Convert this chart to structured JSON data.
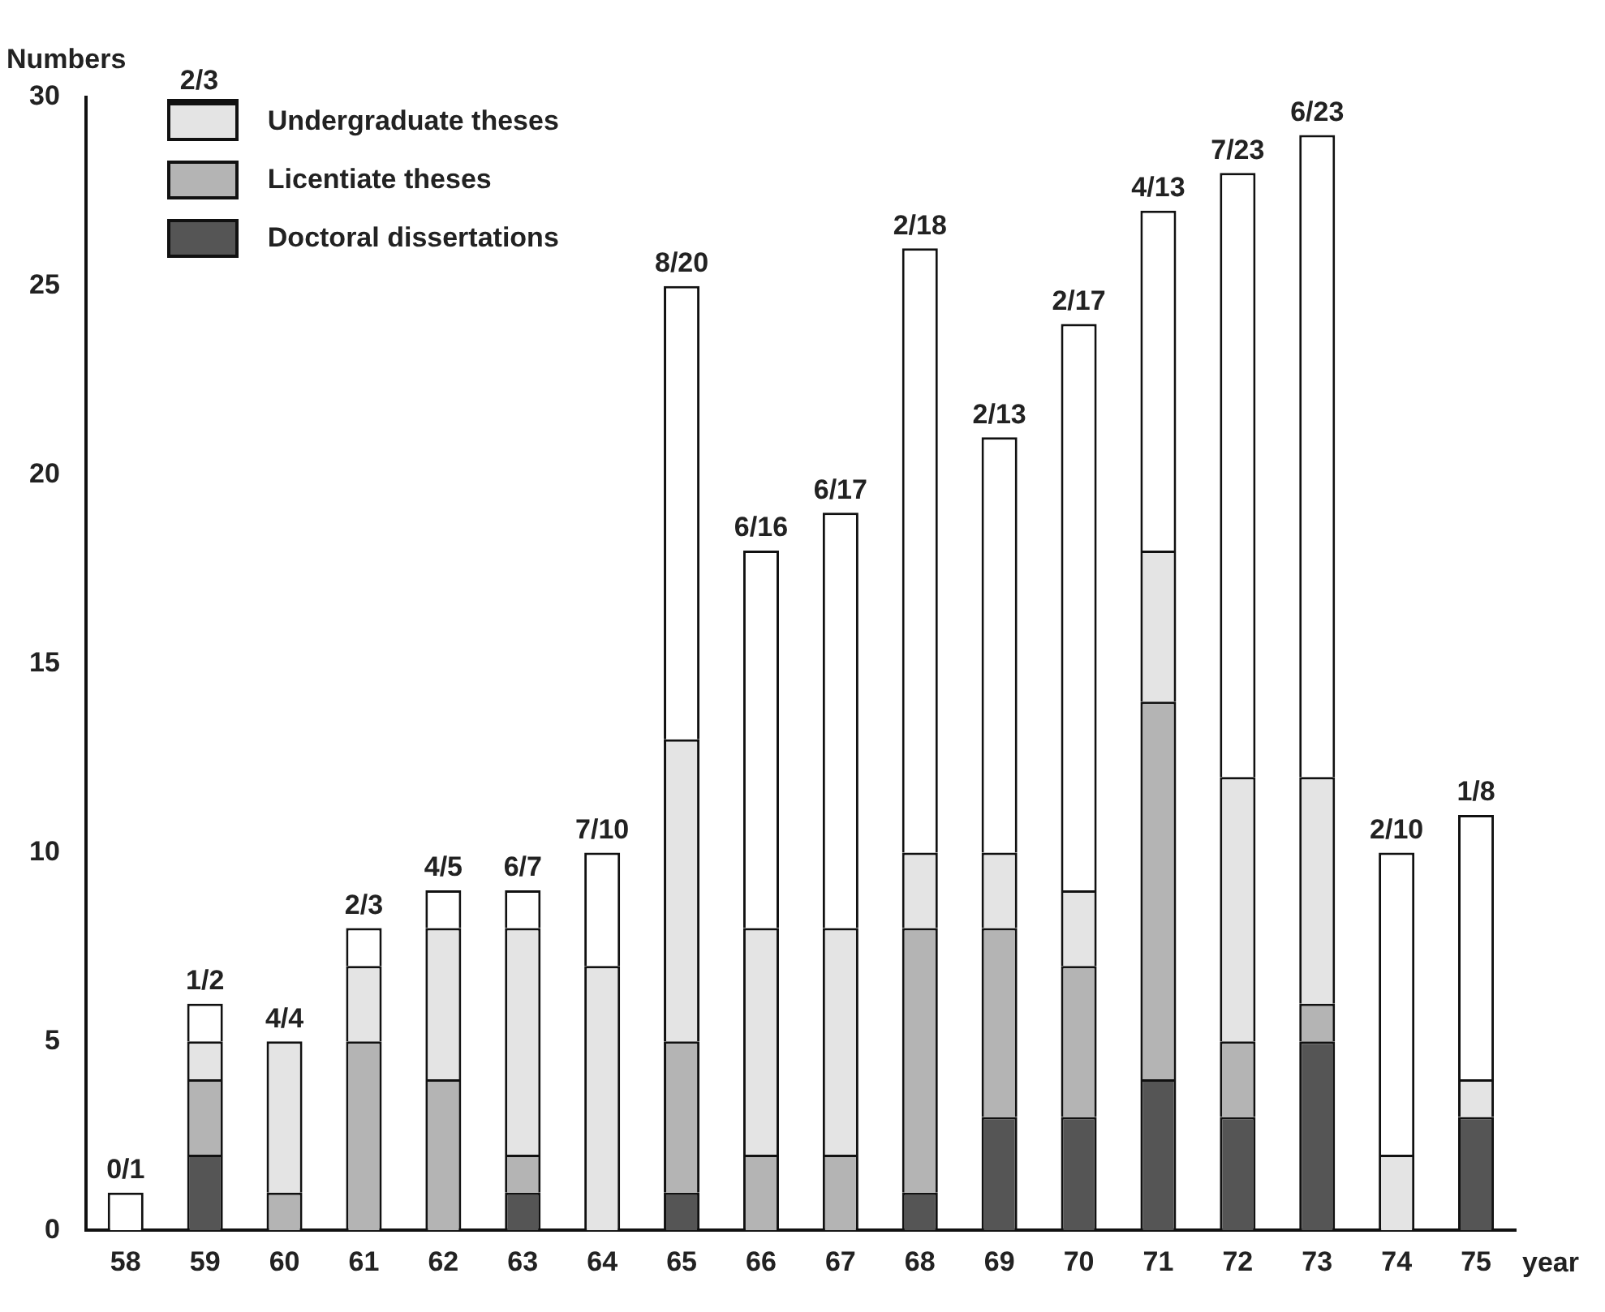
{
  "chart_data": {
    "type": "bar",
    "stacked": true,
    "ylabel": "Numbers",
    "xlabel": "year",
    "categories": [
      "58",
      "59",
      "60",
      "61",
      "62",
      "63",
      "64",
      "65",
      "66",
      "67",
      "68",
      "69",
      "70",
      "71",
      "72",
      "73",
      "74",
      "75"
    ],
    "series": [
      {
        "name": "Doctoral dissertations",
        "color": "#555555",
        "values": [
          0,
          2,
          0,
          0,
          0,
          1,
          0,
          1,
          0,
          0,
          1,
          3,
          3,
          4,
          3,
          5,
          0,
          3
        ]
      },
      {
        "name": "Licentiate theses",
        "color": "#b4b4b4",
        "values": [
          0,
          2,
          1,
          5,
          4,
          1,
          0,
          4,
          2,
          2,
          7,
          5,
          4,
          10,
          2,
          1,
          0,
          0
        ]
      },
      {
        "name": "Undergraduate theses",
        "color": "#e4e4e4",
        "values": [
          0,
          1,
          4,
          2,
          4,
          6,
          7,
          8,
          6,
          6,
          2,
          2,
          2,
          4,
          7,
          6,
          2,
          1
        ]
      },
      {
        "color": "#ffffff",
        "values": [
          1,
          1,
          0,
          1,
          1,
          1,
          3,
          12,
          10,
          11,
          16,
          11,
          15,
          9,
          16,
          17,
          8,
          7
        ]
      }
    ],
    "ylim": [
      0,
      30
    ],
    "yticks": [
      0,
      5,
      10,
      15,
      20,
      25,
      30
    ],
    "legend": "top left",
    "annotations": [
      "2/3",
      {
        "text": "0/1",
        "x": "58",
        "y": 1
      },
      {
        "text": "1/2",
        "x": "59",
        "y": 6
      },
      {
        "text": "4/4",
        "x": "60",
        "y": 5
      },
      {
        "text": "2/3",
        "x": "61",
        "y": 8
      },
      {
        "text": "4/5",
        "x": "62",
        "y": 9
      },
      {
        "text": "6/7",
        "x": "63",
        "y": 9
      },
      {
        "text": "7/10",
        "x": "64",
        "y": 10
      },
      {
        "text": "8/20",
        "x": "65",
        "y": 25
      },
      {
        "text": "6/16",
        "x": "66",
        "y": 18
      },
      {
        "text": "6/17",
        "x": "67",
        "y": 19
      },
      {
        "text": "2/18",
        "x": "68",
        "y": 26
      },
      {
        "text": "2/13",
        "x": "69",
        "y": 21
      },
      {
        "text": "2/17",
        "x": "70",
        "y": 24
      },
      {
        "text": "4/13",
        "x": "71",
        "y": 27
      },
      {
        "text": "7/23",
        "x": "72",
        "y": 28
      },
      {
        "text": "6/23",
        "x": "73",
        "y": 29
      },
      {
        "text": "2/10",
        "x": "74",
        "y": 10
      },
      {
        "text": "1/8",
        "x": "75",
        "y": 11
      }
    ]
  }
}
